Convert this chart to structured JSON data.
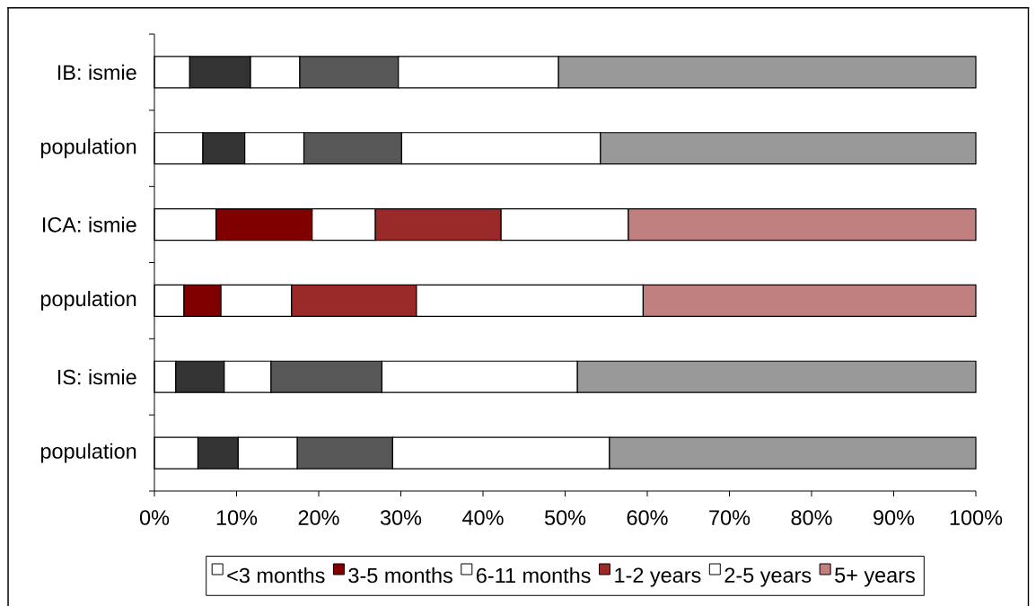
{
  "chart_data": {
    "type": "bar",
    "orientation": "horizontal",
    "stacked": true,
    "categories": [
      "IB: ismie",
      "population",
      "ICA: ismie",
      "population",
      "IS: ismie",
      "population"
    ],
    "series": [
      {
        "name": "<3 months",
        "color": "#ffffff",
        "values": [
          4.3,
          5.9,
          7.5,
          3.6,
          2.6,
          5.3
        ]
      },
      {
        "name": "3-5 months",
        "color": "#800000",
        "colors": [
          "#333333",
          "#333333",
          "#800000",
          "#800000",
          "#333333",
          "#333333"
        ],
        "values": [
          7.4,
          5.1,
          11.7,
          4.5,
          5.9,
          4.9
        ]
      },
      {
        "name": "6-11 months",
        "color": "#ffffff",
        "values": [
          6.0,
          7.2,
          7.7,
          8.6,
          5.7,
          7.2
        ]
      },
      {
        "name": "1-2 years",
        "color": "#9a2a2a",
        "colors": [
          "#575757",
          "#575757",
          "#9a2a2a",
          "#9a2a2a",
          "#575757",
          "#575757"
        ],
        "values": [
          12.0,
          11.9,
          15.3,
          15.2,
          13.5,
          11.6
        ]
      },
      {
        "name": "2-5 years",
        "color": "#ffffff",
        "values": [
          19.5,
          24.2,
          15.5,
          27.6,
          23.8,
          26.4
        ]
      },
      {
        "name": "5+ years",
        "color": "#c08080",
        "colors": [
          "#999999",
          "#999999",
          "#c08080",
          "#c08080",
          "#999999",
          "#999999"
        ],
        "values": [
          50.8,
          45.7,
          42.3,
          40.5,
          48.5,
          44.6
        ]
      }
    ],
    "xlim": [
      0,
      100
    ],
    "xticks": [
      {
        "value": 0,
        "label": "0%"
      },
      {
        "value": 10,
        "label": "10%"
      },
      {
        "value": 20,
        "label": "20%"
      },
      {
        "value": 30,
        "label": "30%"
      },
      {
        "value": 40,
        "label": "40%"
      },
      {
        "value": 50,
        "label": "50%"
      },
      {
        "value": 60,
        "label": "60%"
      },
      {
        "value": 70,
        "label": "70%"
      },
      {
        "value": 80,
        "label": "80%"
      },
      {
        "value": 90,
        "label": "90%"
      },
      {
        "value": 100,
        "label": "100%"
      }
    ],
    "legend": "bottom"
  }
}
